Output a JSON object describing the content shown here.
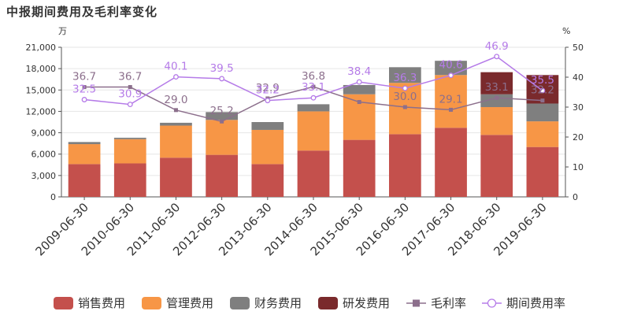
{
  "chart_data": {
    "type": "bar",
    "title": "中报期间费用及毛利率变化",
    "left_unit": "万",
    "right_unit": "%",
    "categories": [
      "2009-06-30",
      "2010-06-30",
      "2011-06-30",
      "2012-06-30",
      "2013-06-30",
      "2014-06-30",
      "2015-06-30",
      "2016-06-30",
      "2017-06-30",
      "2018-06-30",
      "2019-06-30"
    ],
    "ylim": [
      0,
      21000
    ],
    "y_ticks": [
      0,
      3000,
      6000,
      9000,
      12000,
      15000,
      18000,
      21000
    ],
    "y_tick_labels": [
      "0",
      "3,000",
      "6,000",
      "9,000",
      "12,000",
      "15,000",
      "18,000",
      "21,000"
    ],
    "y2lim": [
      0,
      50
    ],
    "y2_ticks": [
      0,
      10,
      20,
      30,
      40,
      50
    ],
    "y2_tick_labels": [
      "0",
      "10",
      "20",
      "30",
      "40",
      "50"
    ],
    "bar_series": [
      {
        "name": "销售费用",
        "color": "#c4504c",
        "values": [
          4600,
          4700,
          5500,
          5900,
          4600,
          6500,
          8000,
          8800,
          9700,
          8700,
          7000
        ]
      },
      {
        "name": "管理费用",
        "color": "#f79646",
        "values": [
          2800,
          3400,
          4500,
          4900,
          4800,
          5500,
          6400,
          7200,
          7400,
          3900,
          3600
        ]
      },
      {
        "name": "财务费用",
        "color": "#7f7f7f",
        "values": [
          300,
          200,
          400,
          1100,
          1100,
          1000,
          1300,
          2200,
          2000,
          1800,
          2500
        ]
      },
      {
        "name": "研发费用",
        "color": "#7a2a2c",
        "values": [
          0,
          0,
          0,
          0,
          0,
          0,
          0,
          0,
          0,
          3100,
          4000
        ]
      }
    ],
    "line_series": [
      {
        "name": "毛利率",
        "color": "#8c6f8c",
        "marker": "square",
        "values": [
          36.7,
          36.7,
          29.0,
          25.2,
          32.9,
          36.8,
          31.7,
          30.0,
          29.1,
          33.1,
          32.2
        ],
        "labels": [
          "36.7",
          "36.7",
          "29.0",
          "25.2",
          "32.9",
          "36.8",
          "",
          "30.0",
          "29.1",
          "33.1",
          "32.2"
        ]
      },
      {
        "name": "期间费用率",
        "color": "#b57be8",
        "marker": "circle",
        "values": [
          32.5,
          30.9,
          40.1,
          39.5,
          32.2,
          33.1,
          38.4,
          36.3,
          40.6,
          46.9,
          35.5
        ],
        "labels": [
          "32.5",
          "30.9",
          "40.1",
          "39.5",
          "32.2",
          "33.1",
          "38.4",
          "36.3",
          "40.6",
          "46.9",
          "35.5"
        ]
      }
    ],
    "legend": {
      "position": "bottom",
      "items": [
        {
          "label": "销售费用",
          "color": "#c4504c",
          "kind": "bar"
        },
        {
          "label": "管理费用",
          "color": "#f79646",
          "kind": "bar"
        },
        {
          "label": "财务费用",
          "color": "#7f7f7f",
          "kind": "bar"
        },
        {
          "label": "研发费用",
          "color": "#7a2a2c",
          "kind": "bar"
        },
        {
          "label": "毛利率",
          "color": "#8c6f8c",
          "kind": "line-square"
        },
        {
          "label": "期间费用率",
          "color": "#b57be8",
          "kind": "line-circle"
        }
      ]
    }
  }
}
